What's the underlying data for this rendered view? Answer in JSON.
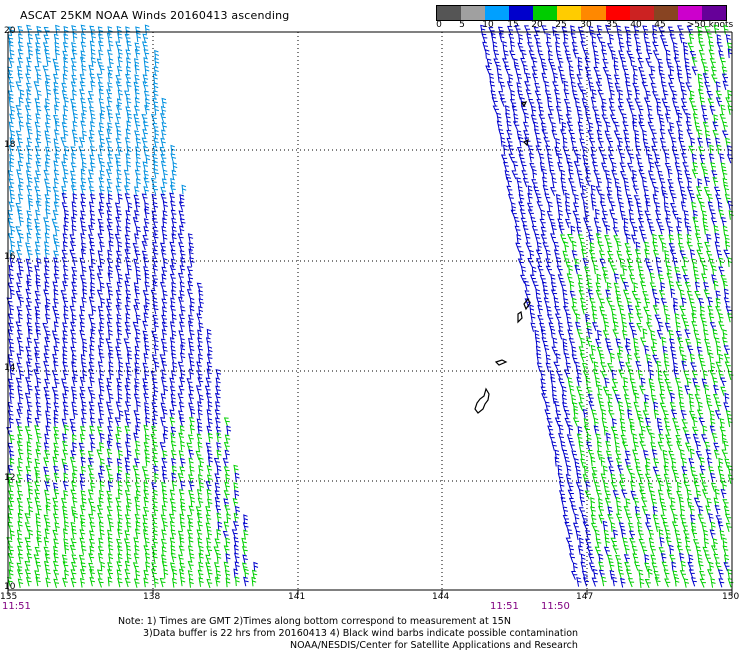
{
  "title": "ASCAT 25KM NOAA Winds 20160413 ascending",
  "colorbar": {
    "colors": [
      "#555555",
      "#a0a0a0",
      "#00a0ff",
      "#0000cc",
      "#00cc00",
      "#ffcc00",
      "#ff8800",
      "#ff0000",
      "#cc2222",
      "#884422",
      "#cc00cc",
      "#660099"
    ],
    "labels": [
      "0",
      "5",
      "10",
      "15",
      "20",
      "25",
      "30",
      "35",
      "40",
      "45",
      ">50 knots"
    ]
  },
  "axes": {
    "lon_labels": [
      "135",
      "138",
      "141",
      "144",
      "147",
      "150"
    ],
    "lat_labels": [
      "20",
      "18",
      "16",
      "14",
      "12",
      "10"
    ]
  },
  "times": {
    "left": "11:51",
    "mid1": "11:51",
    "mid2": "11:50"
  },
  "notes": {
    "line1": "Note: 1) Times are GMT 2)Times along bottom correspond to measurement at 15N",
    "line2": "3)Data buffer is 22 hrs from 20160413 4) Black wind barbs indicate possible contamination",
    "line3": "NOAA/NESDIS/Center for Satellite Applications and Research"
  },
  "legend_colors": {
    "light_blue": "#0090e0",
    "blue": "#0000cc",
    "green": "#00d000",
    "land": "#000000"
  }
}
